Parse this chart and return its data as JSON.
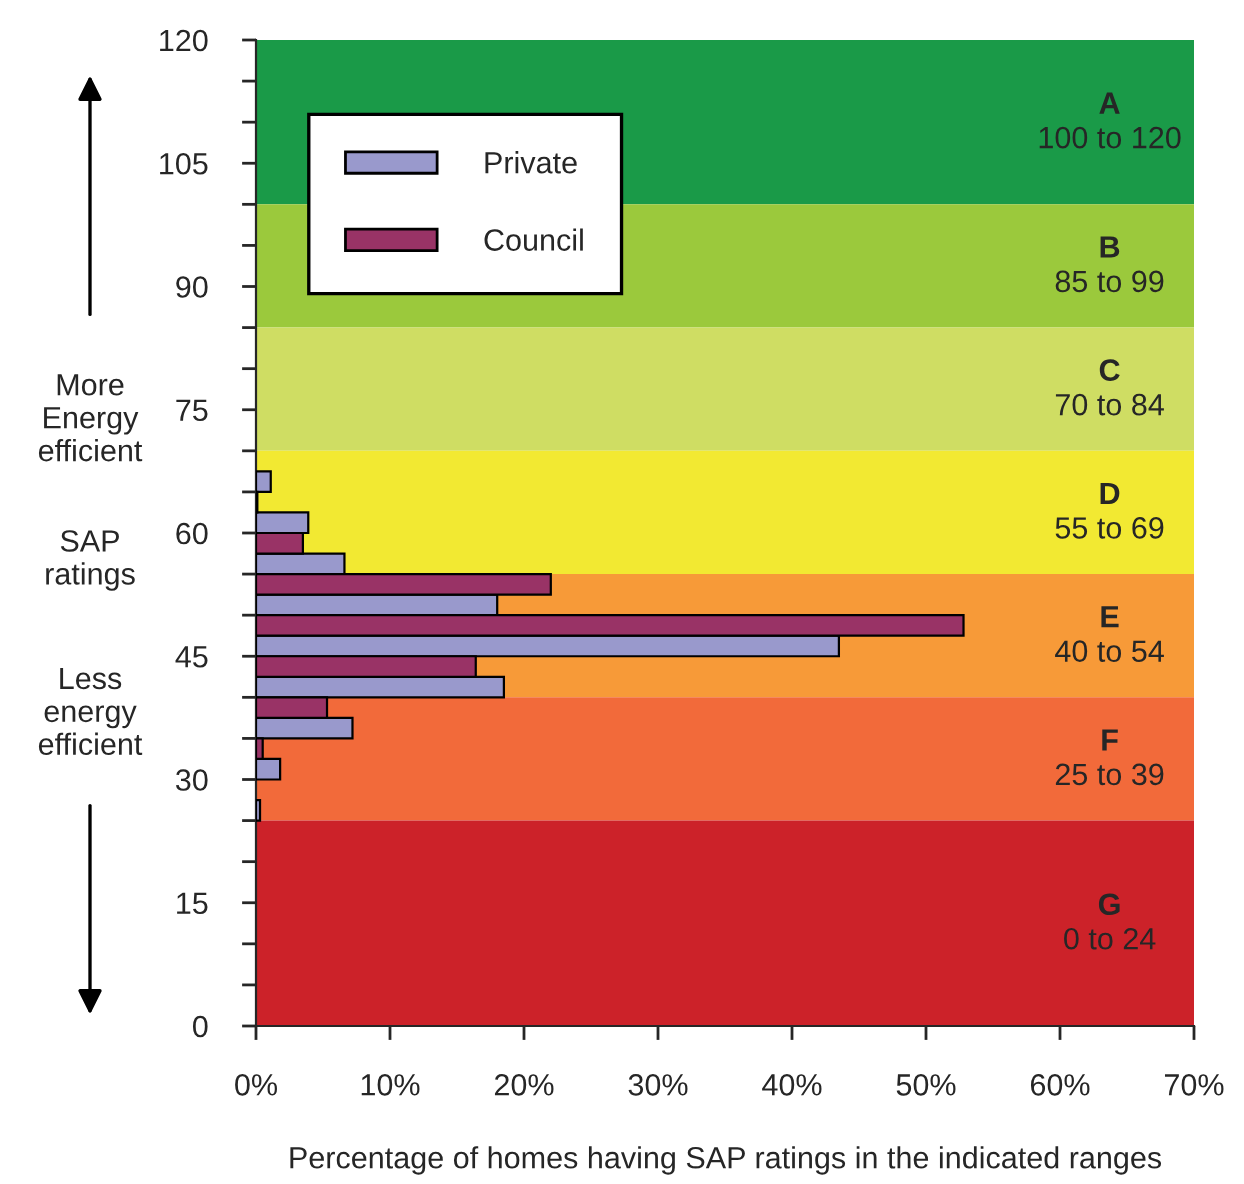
{
  "chart_data": {
    "type": "bar",
    "orientation": "horizontal",
    "xlabel": "Percentage of homes having SAP ratings in the indicated ranges",
    "series": [
      {
        "name": "Private",
        "color": "#9999cc",
        "x": [
          27.5,
          32.5,
          37.5,
          42.5,
          47.5,
          52.5,
          57.5,
          62.5,
          67.5
        ],
        "values": [
          0.3,
          1.8,
          7.2,
          18.5,
          43.5,
          18.0,
          6.6,
          3.9,
          1.1
        ]
      },
      {
        "name": "Council",
        "color": "#993366",
        "x": [
          32.5,
          37.5,
          42.5,
          47.5,
          52.5,
          57.5,
          62.5
        ],
        "values": [
          0.5,
          5.3,
          16.4,
          52.8,
          22.0,
          3.5,
          0.1
        ]
      }
    ],
    "xlim": [
      0,
      70
    ],
    "xticks": [
      {
        "value": 0,
        "label": "0%"
      },
      {
        "value": 10,
        "label": "10%"
      },
      {
        "value": 20,
        "label": "20%"
      },
      {
        "value": 30,
        "label": "30%"
      },
      {
        "value": 40,
        "label": "40%"
      },
      {
        "value": 50,
        "label": "50%"
      },
      {
        "value": 60,
        "label": "60%"
      },
      {
        "value": 70,
        "label": "70%"
      }
    ],
    "ylim": [
      0,
      120
    ],
    "yticks": [
      0,
      {
        "value": 5,
        "label": null
      },
      {
        "value": 10,
        "label": null
      },
      15,
      {
        "value": 20,
        "label": null
      },
      {
        "value": 25,
        "label": null
      },
      30,
      {
        "value": 35,
        "label": null
      },
      {
        "value": 40,
        "label": null
      },
      45,
      {
        "value": 50,
        "label": null
      },
      {
        "value": 55,
        "label": null
      },
      60,
      {
        "value": 65,
        "label": null
      },
      {
        "value": 70,
        "label": null
      },
      75,
      {
        "value": 80,
        "label": null
      },
      {
        "value": 85,
        "label": null
      },
      90,
      {
        "value": 95,
        "label": null
      },
      {
        "value": 100,
        "label": null
      },
      105,
      {
        "value": 110,
        "label": null
      },
      {
        "value": 115,
        "label": null
      },
      120
    ],
    "bands": [
      {
        "axis": "y",
        "from": 100,
        "to": 120,
        "label": "A\n100 to 120",
        "color": "#1a9a48"
      },
      {
        "axis": "y",
        "from": 85,
        "to": 100,
        "label": "B\n85 to 99",
        "color": "#9bc93c"
      },
      {
        "axis": "y",
        "from": 70,
        "to": 85,
        "label": "C\n70 to 84",
        "color": "#cfdd63"
      },
      {
        "axis": "y",
        "from": 55,
        "to": 70,
        "label": "D\n55 to 69",
        "color": "#f2e932"
      },
      {
        "axis": "y",
        "from": 40,
        "to": 55,
        "label": "E\n40 to 54",
        "color": "#f79a38"
      },
      {
        "axis": "y",
        "from": 25,
        "to": 40,
        "label": "F\n25 to 39",
        "color": "#f26a3a"
      },
      {
        "axis": "y",
        "from": 0,
        "to": 25,
        "label": "G\n0 to 24",
        "color": "#cc2229"
      }
    ],
    "annotations": [
      "More\nEnergy\nefficient",
      "SAP\nratings",
      "Less\nenergy\nefficient"
    ],
    "legend": "top left",
    "grid": false
  }
}
